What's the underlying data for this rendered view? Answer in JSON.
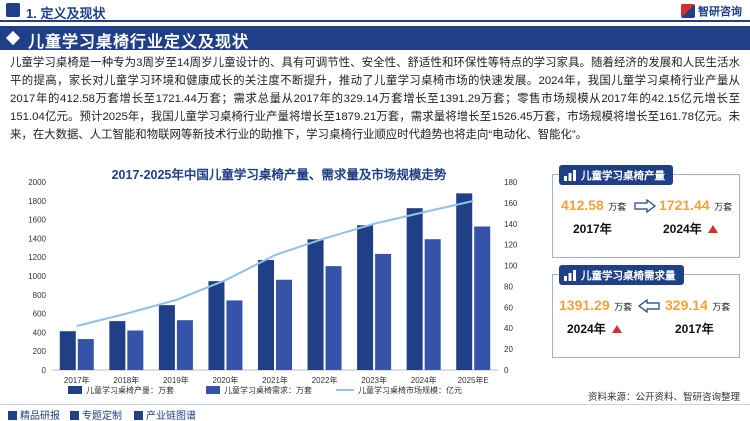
{
  "header": {
    "section": "1. 定义及现状",
    "logo_text": "智研咨询"
  },
  "banner": {
    "title": "儿童学习桌椅行业定义及现状"
  },
  "intro": {
    "paragraph": "儿童学习桌椅是一种专为3周岁至14周岁儿童设计的、具有可调节性、安全性、舒适性和环保性等特点的学习家具。随着经济的发展和人民生活水平的提高，家长对儿童学习环境和健康成长的关注度不断提升，推动了儿童学习桌椅市场的快速发展。2024年，我国儿童学习桌椅行业产量从2017年的412.58万套增长至1721.44万套；需求总量从2017年的329.14万套增长至1391.29万套；零售市场规模从2017年的42.15亿元增长至151.04亿元。预计2025年，我国儿童学习桌椅行业产量将增长至1879.21万套，需求量将增长至1526.45万套，市场规模将增长至161.78亿元。未来，在大数据、人工智能和物联网等新技术行业的助推下，学习桌椅行业顺应时代趋势也将走向“电动化、智能化”。"
  },
  "chart_data": {
    "type": "bar",
    "title": "2017-2025年中国儿童学习桌椅产量、需求量及市场规模走势",
    "categories": [
      "2017年",
      "2018年",
      "2019年",
      "2020年",
      "2021年",
      "2022年",
      "2023年",
      "2024年",
      "2025年E"
    ],
    "series": [
      {
        "name": "儿童学习桌椅产量：万套",
        "type": "bar",
        "axis": "left",
        "color": "#1f3f86",
        "values": [
          412.58,
          520,
          690,
          945,
          1170,
          1390,
          1540,
          1721.44,
          1879.21
        ]
      },
      {
        "name": "儿童学习桌椅需求：万套",
        "type": "bar",
        "axis": "left",
        "color": "#3553a8",
        "values": [
          329.14,
          420,
          530,
          740,
          960,
          1105,
          1235,
          1391.29,
          1526.45
        ]
      },
      {
        "name": "儿童学习桌椅市场规模：亿元",
        "type": "line",
        "axis": "right",
        "color": "#8fc2e8",
        "values": [
          42.15,
          54,
          67,
          86,
          110,
          126,
          140,
          151.04,
          161.78
        ]
      }
    ],
    "ylim_left": [
      0,
      2000
    ],
    "yticks_left": [
      0,
      200,
      400,
      600,
      800,
      1000,
      1200,
      1400,
      1600,
      1800,
      2000
    ],
    "ylim_right": [
      0,
      180
    ],
    "yticks_right": [
      0,
      20,
      40,
      60,
      80,
      100,
      120,
      140,
      160,
      180
    ],
    "legend_position": "bottom",
    "grid": false
  },
  "cards": {
    "production": {
      "title": "儿童学习桌椅产量",
      "from_value": "412.58",
      "from_unit": "万套",
      "from_year": "2017年",
      "to_value": "1721.44",
      "to_unit": "万套",
      "to_year": "2024年"
    },
    "demand": {
      "title": "儿童学习桌椅需求量",
      "left_value": "1391.29",
      "left_unit": "万套",
      "left_year": "2024年",
      "right_value": "329.14",
      "right_unit": "万套",
      "right_year": "2017年"
    }
  },
  "source": "资料来源：公开资料、智研咨询整理",
  "footer": {
    "item1": "精品研报",
    "item2": "专题定制",
    "item3": "产业链图谱"
  },
  "colors": {
    "brand_blue": "#1f3f86",
    "accent_orange": "#f2a23a",
    "arrow_red": "#d32f2f",
    "line_light_blue": "#8fc2e8"
  }
}
